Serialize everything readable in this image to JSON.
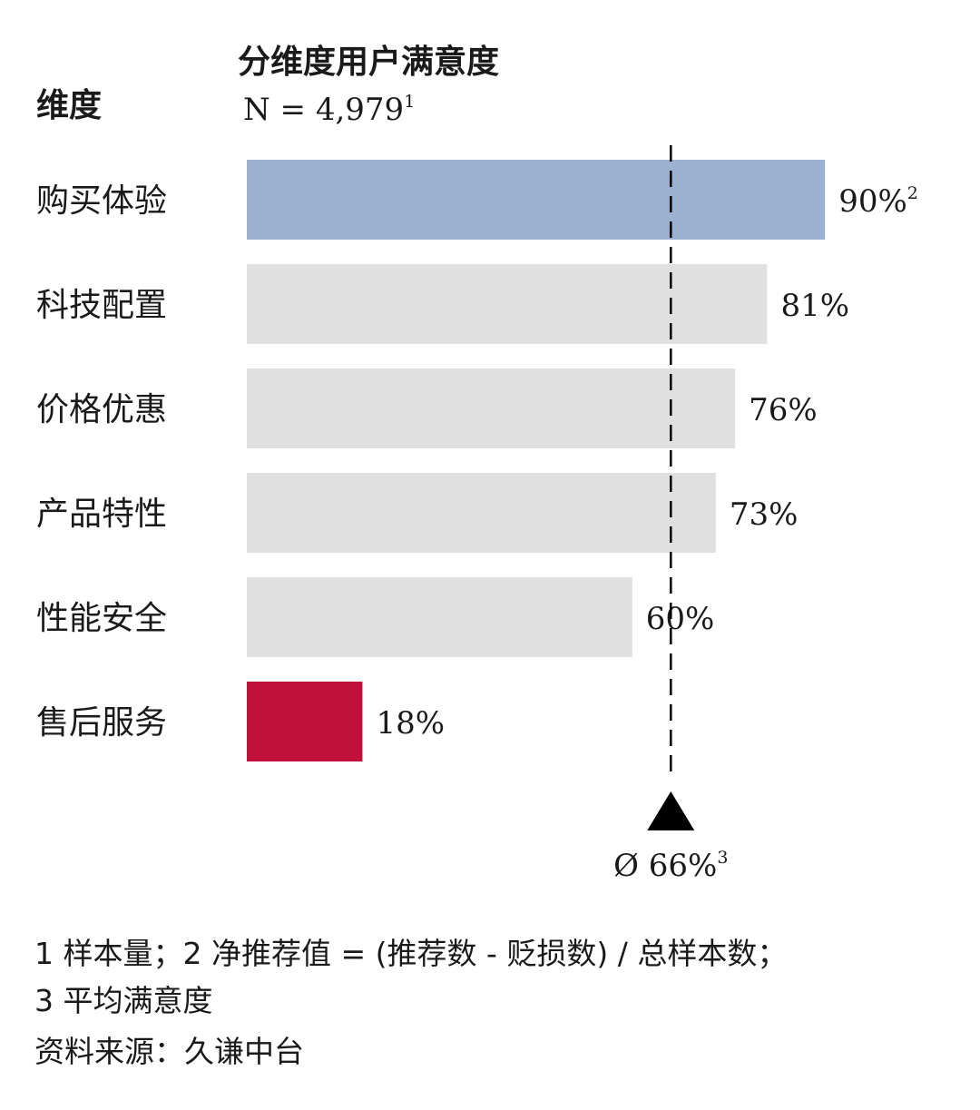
{
  "header": {
    "dimension_label": "维度",
    "title": "分维度用户满意度",
    "sample_text": "N = 4,979",
    "sample_sup": "1"
  },
  "chart_data": {
    "type": "bar",
    "orientation": "horizontal",
    "title": "分维度用户满意度",
    "categories": [
      "购买体验",
      "科技配置",
      "价格优惠",
      "产品特性",
      "性能安全",
      "售后服务"
    ],
    "values": [
      90,
      81,
      76,
      73,
      60,
      18
    ],
    "value_labels": [
      "90%",
      "81%",
      "76%",
      "73%",
      "60%",
      "18%"
    ],
    "value_label_sups": [
      "2",
      "",
      "",
      "",
      "",
      ""
    ],
    "bar_colors": [
      "#9cb1cf",
      "#e0e0e0",
      "#e0e0e0",
      "#e0e0e0",
      "#e0e0e0",
      "#c0103a"
    ],
    "xlim": [
      0,
      100
    ],
    "average": {
      "value": 66,
      "label": "Ø 66%",
      "sup": "3"
    },
    "grid": false,
    "legend": "none"
  },
  "footnotes": {
    "line1": "1 样本量；2 净推荐值 = (推荐数 - 贬损数) / 总样本数；",
    "line2": "3 平均满意度",
    "source": "资料来源：久谦中台"
  },
  "colors": {
    "text": "#1a1a1a",
    "marker": "#000000"
  }
}
